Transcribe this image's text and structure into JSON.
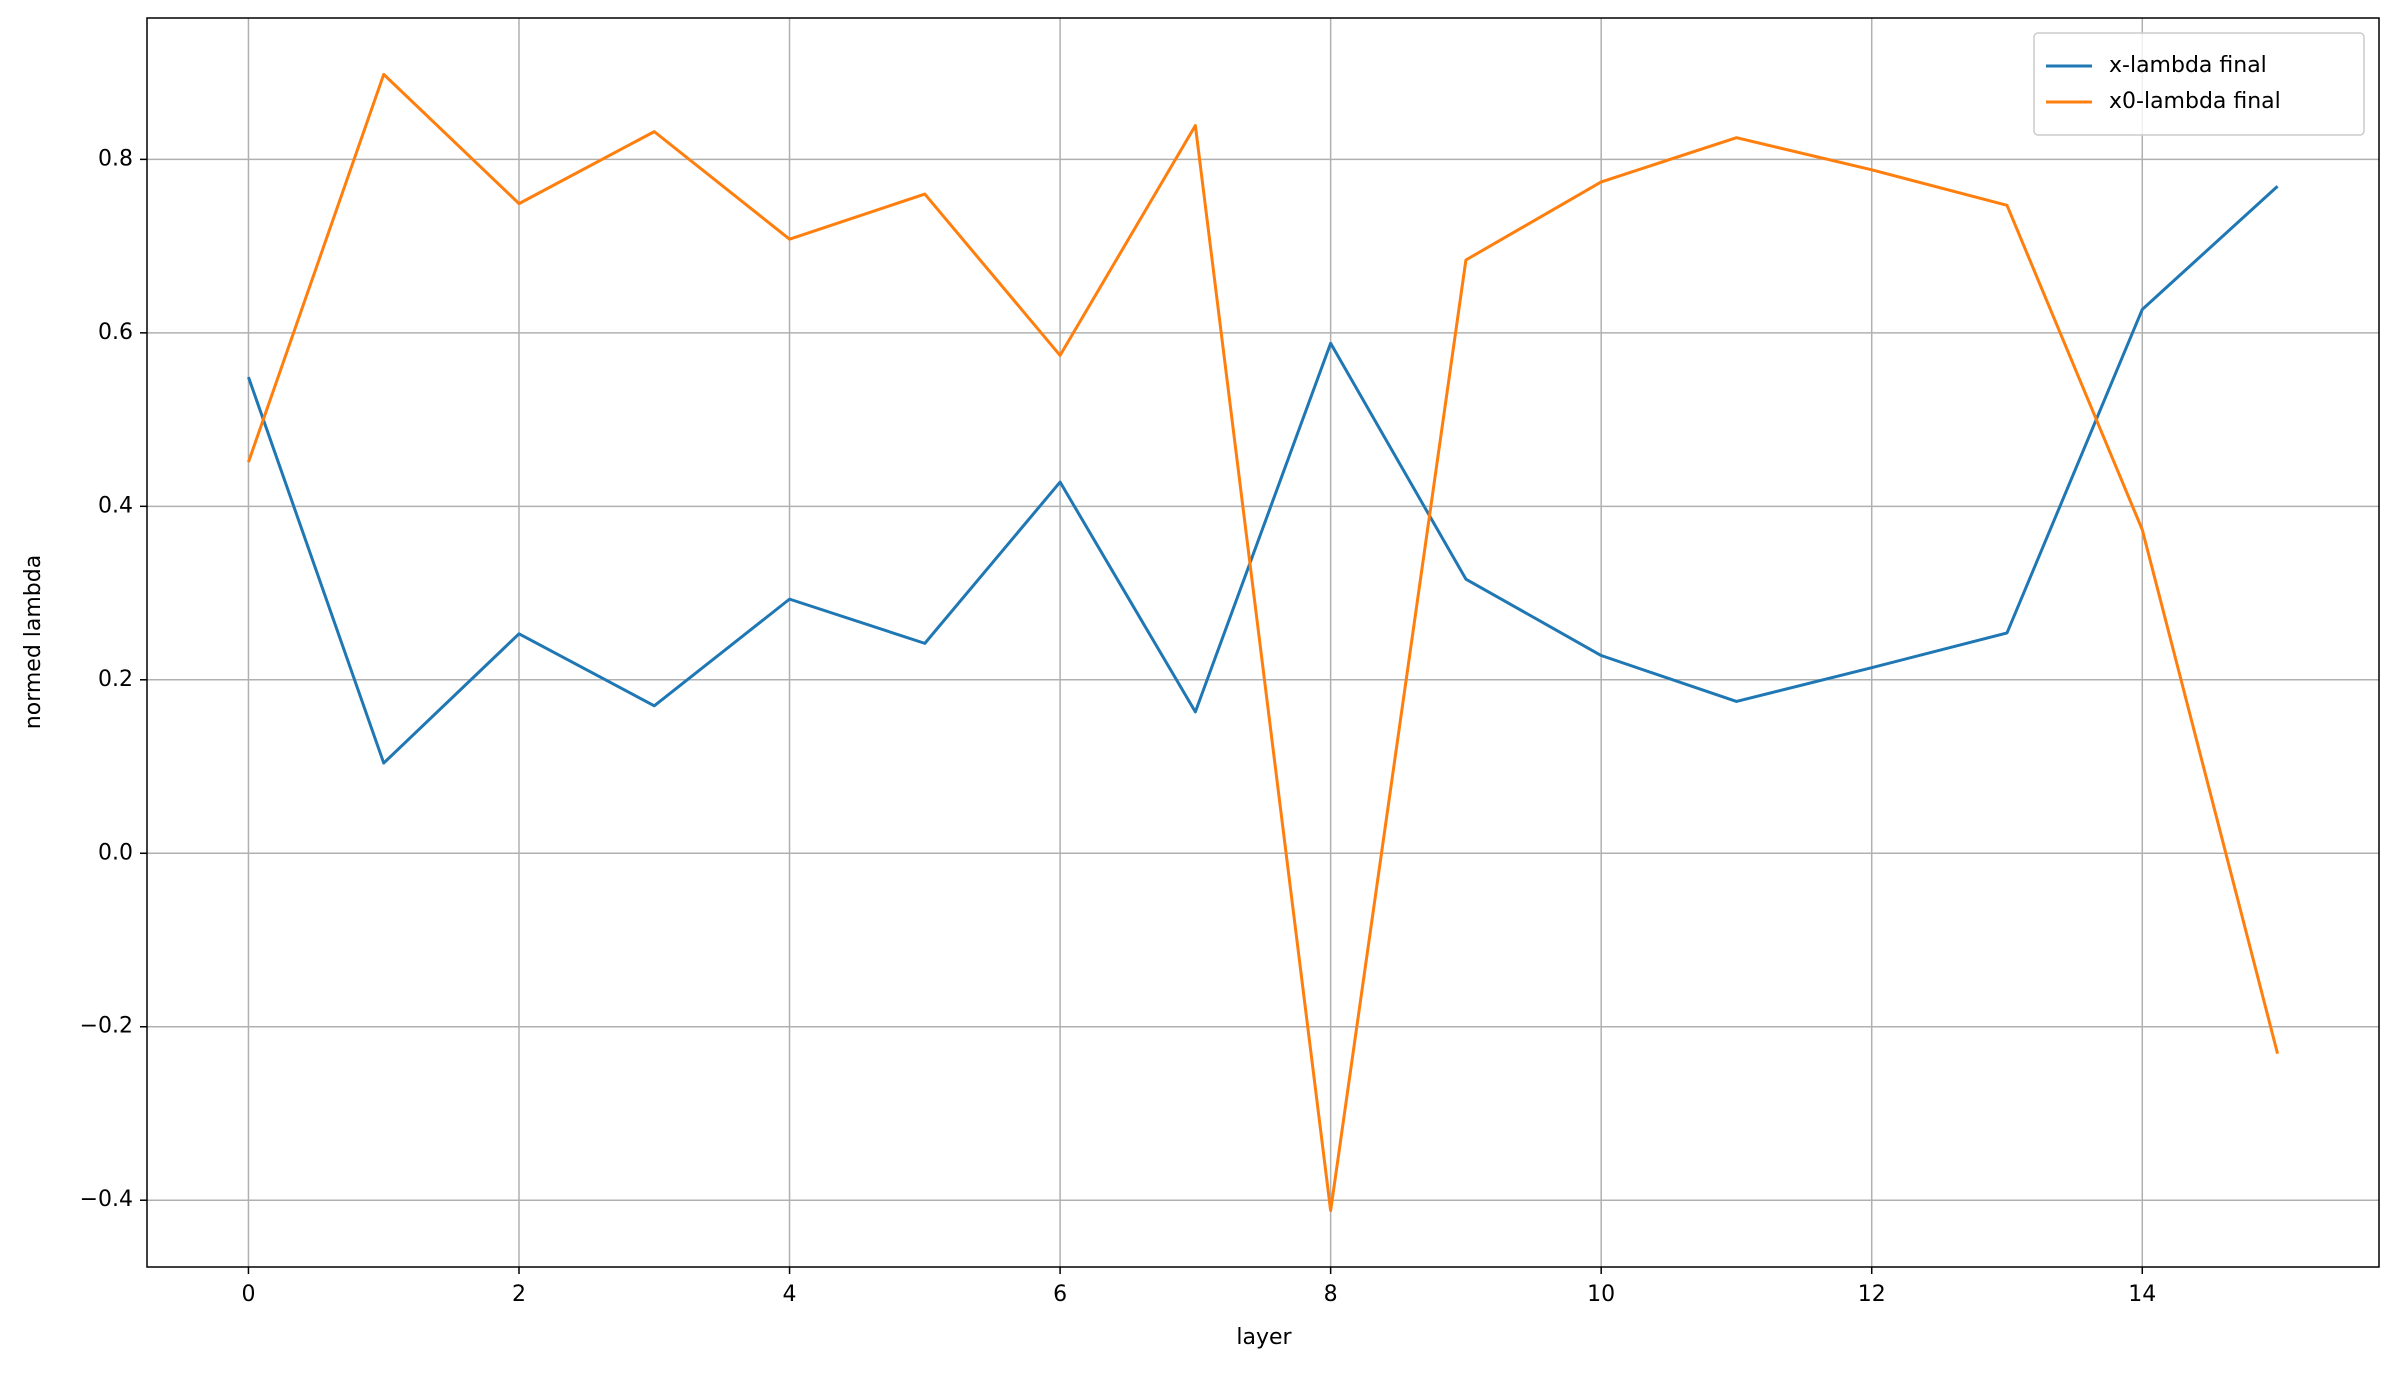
{
  "chart_data": {
    "type": "line",
    "xlabel": "layer",
    "ylabel": "normed lambda",
    "x": [
      0,
      1,
      2,
      3,
      4,
      5,
      6,
      7,
      8,
      9,
      10,
      11,
      12,
      13,
      14,
      15
    ],
    "series": [
      {
        "name": "x-lambda final",
        "color": "#1f77b4",
        "values": [
          0.549,
          0.104,
          0.253,
          0.17,
          0.293,
          0.242,
          0.428,
          0.163,
          0.588,
          0.316,
          0.228,
          0.175,
          0.214,
          0.254,
          0.627,
          0.769
        ]
      },
      {
        "name": "x0-lambda final",
        "color": "#ff7f0e",
        "values": [
          0.451,
          0.898,
          0.749,
          0.832,
          0.708,
          0.76,
          0.574,
          0.839,
          -0.412,
          0.684,
          0.774,
          0.825,
          0.788,
          0.747,
          0.373,
          -0.231
        ]
      }
    ],
    "xlim": [
      -0.75,
      15.75
    ],
    "xticks": [
      0,
      2,
      4,
      6,
      8,
      10,
      12,
      14
    ],
    "ylim": [
      -0.477,
      0.963
    ],
    "yticks": [
      {
        "value": -0.4,
        "label": "−0.4"
      },
      {
        "value": -0.2,
        "label": "−0.2"
      },
      {
        "value": 0,
        "label": "0.0"
      },
      {
        "value": 0.2,
        "label": "0.2"
      },
      {
        "value": 0.4,
        "label": "0.4"
      },
      {
        "value": 0.6,
        "label": "0.6"
      },
      {
        "value": 0.8,
        "label": "0.8"
      }
    ],
    "grid": true,
    "legend": "upper right"
  }
}
